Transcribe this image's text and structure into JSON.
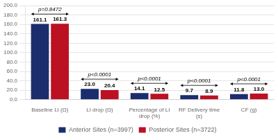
{
  "chart_data": {
    "type": "bar",
    "categories": [
      "Baseline LI (Ω)",
      "LI drop (Ω)",
      "Percentage of LI\ndrop (%)",
      "RF Delivery time\n(s)",
      "CF (g)"
    ],
    "series": [
      {
        "name": "Anterior Sites (n=3997)",
        "color": "#1c2d6e",
        "values": [
          161.1,
          23.0,
          14.1,
          9.7,
          11.8
        ],
        "value_labels": [
          "161.1",
          "23.0",
          "14.1",
          "9.7",
          "11.8"
        ]
      },
      {
        "name": "Posterior Sites (n=3722)",
        "color": "#bb1122",
        "values": [
          161.3,
          20.4,
          12.5,
          8.9,
          13.0
        ],
        "value_labels": [
          "161.3",
          "20.4",
          "12.5",
          "8.9",
          "13.0"
        ]
      }
    ],
    "annotations": [
      {
        "text": "p=0.8472",
        "category": "Baseline LI (Ω)"
      },
      {
        "text": "p<0.0001",
        "category": "LI drop (Ω)"
      },
      {
        "text": "p<0.0001",
        "category": "Percentage of LI\ndrop (%)"
      },
      {
        "text": "p<0.0001",
        "category": "RF Delivery time\n(s)"
      },
      {
        "text": "p<0.0001",
        "category": "CF (g)"
      }
    ],
    "ylim": [
      0,
      200
    ],
    "yticks": [
      {
        "value": 0,
        "label": "0.0"
      },
      {
        "value": 20,
        "label": "20.0"
      },
      {
        "value": 40,
        "label": "40.0"
      },
      {
        "value": 60,
        "label": "60.0"
      },
      {
        "value": 80,
        "label": "80.0"
      },
      {
        "value": 100,
        "label": "100.0"
      },
      {
        "value": 120,
        "label": "120.0"
      },
      {
        "value": 140,
        "label": "140.0"
      },
      {
        "value": 160,
        "label": "160.0"
      },
      {
        "value": 180,
        "label": "180.0"
      },
      {
        "value": 200,
        "label": "200.0"
      }
    ],
    "grid": true,
    "legend": "bottom",
    "data_labels": true
  }
}
